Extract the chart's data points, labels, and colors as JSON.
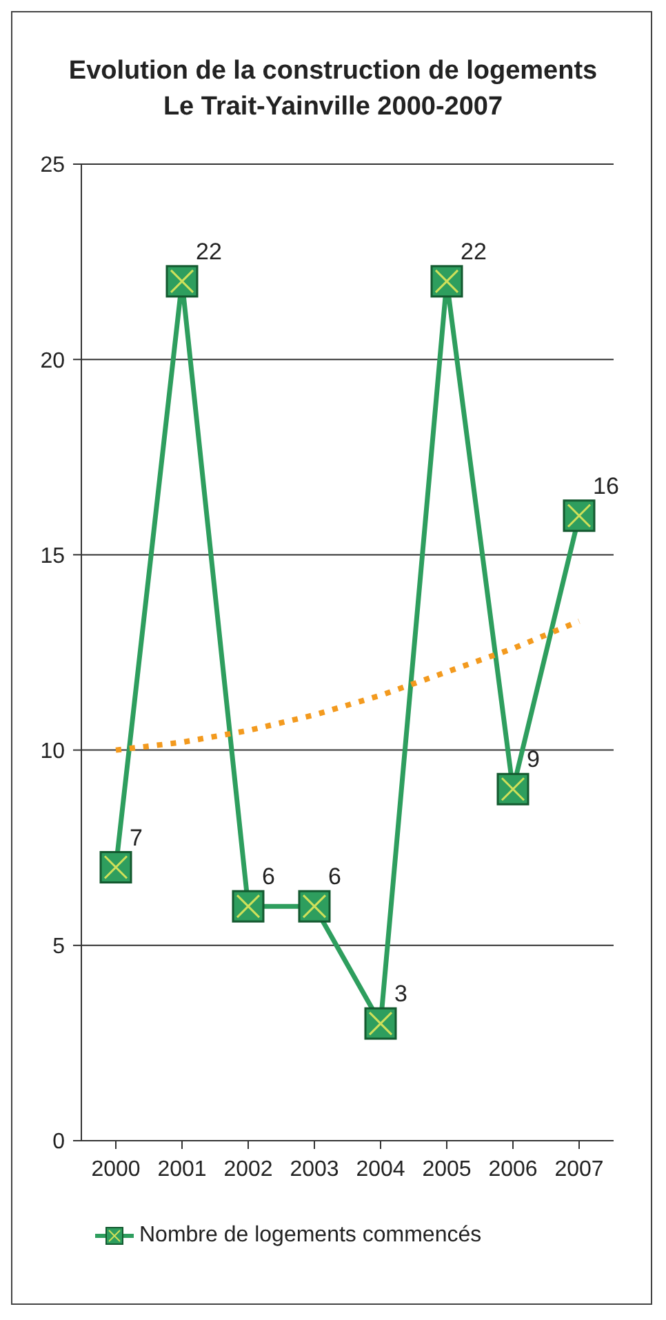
{
  "chart_data": {
    "type": "line",
    "title": "Evolution de la construction de logements\nLe Trait-Yainville 2000-2007",
    "categories": [
      "2000",
      "2001",
      "2002",
      "2003",
      "2004",
      "2005",
      "2006",
      "2007"
    ],
    "series": [
      {
        "name": "Nombre de logements commencés",
        "color": "#2e9e5e",
        "values": [
          7,
          22,
          6,
          6,
          3,
          22,
          9,
          16
        ],
        "marker": "square",
        "line_style": "solid",
        "data_labels": true
      },
      {
        "type": "line",
        "color": "#f39a1e",
        "values": [
          10,
          10.2,
          10.5,
          10.9,
          11.4,
          12,
          12.6,
          13.3
        ],
        "marker": "none",
        "line_style": "dotted"
      }
    ],
    "ylim": [
      0,
      25
    ],
    "yticks": [
      0,
      5,
      10,
      15,
      20,
      25
    ],
    "grid": "y",
    "legend": "bottom left"
  }
}
